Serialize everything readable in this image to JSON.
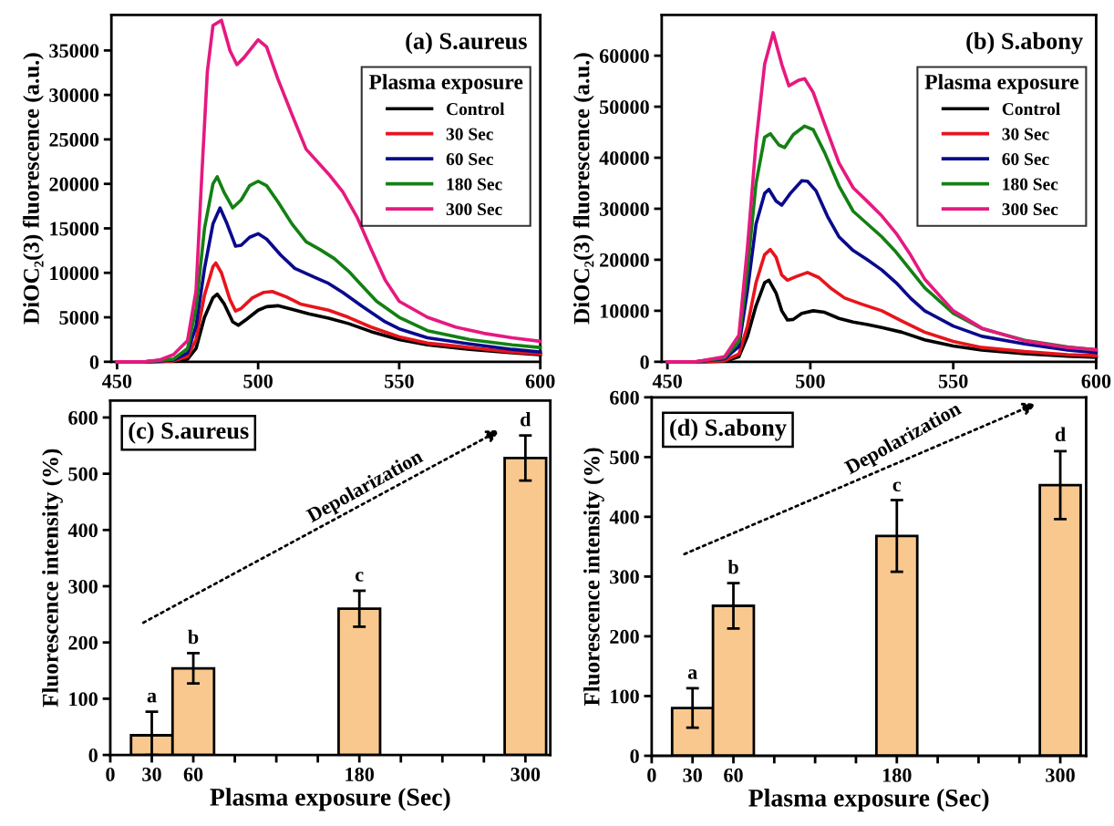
{
  "chart_data": [
    {
      "type": "line",
      "title": "(a) S.aureus",
      "ylabel": "DiOC₂(3) fluorescence (a.u.)",
      "legend_title": "Plasma exposure",
      "legend": "top right",
      "xlim": [
        448,
        600
      ],
      "xticks": [
        450,
        500,
        550,
        600
      ],
      "ylim": [
        0,
        39000
      ],
      "yticks": [
        0,
        5000,
        10000,
        15000,
        20000,
        25000,
        30000,
        35000
      ],
      "series": [
        {
          "name": "Control",
          "color": "#000000",
          "x": [
            450,
            460,
            470,
            475,
            478,
            481,
            484,
            485.5,
            488,
            491,
            493,
            496,
            500,
            503,
            507,
            512,
            518,
            525,
            532,
            540,
            550,
            560,
            575,
            590,
            600
          ],
          "values": [
            0,
            0,
            100,
            300,
            1500,
            5000,
            7200,
            7600,
            6500,
            4500,
            4100,
            4800,
            5800,
            6200,
            6300,
            5900,
            5400,
            4900,
            4300,
            3400,
            2500,
            1900,
            1400,
            1000,
            800
          ]
        },
        {
          "name": "30 Sec",
          "color": "#e8141c",
          "x": [
            450,
            460,
            470,
            475,
            478,
            481,
            484,
            485,
            487,
            490,
            492,
            494,
            498,
            502,
            505,
            510,
            515,
            525,
            532,
            540,
            550,
            560,
            575,
            590,
            600
          ],
          "values": [
            0,
            0,
            100,
            600,
            2500,
            7500,
            10700,
            11100,
            10000,
            7000,
            5700,
            6000,
            7200,
            7800,
            7900,
            7300,
            6500,
            5800,
            5000,
            3900,
            2800,
            2100,
            1600,
            1100,
            900
          ]
        },
        {
          "name": "60 Sec",
          "color": "#0a0a8c",
          "x": [
            450,
            460,
            470,
            475,
            478,
            481,
            484,
            486.5,
            489,
            492,
            494,
            497,
            500,
            503,
            508,
            513,
            520,
            525,
            530,
            537,
            545,
            550,
            560,
            575,
            590,
            600
          ],
          "values": [
            0,
            0,
            200,
            1000,
            4000,
            10500,
            15500,
            17300,
            15500,
            13000,
            13100,
            14000,
            14400,
            13800,
            12000,
            10500,
            9500,
            8800,
            7800,
            6200,
            4500,
            3700,
            2700,
            2000,
            1400,
            1100
          ]
        },
        {
          "name": "180 Sec",
          "color": "#138013",
          "x": [
            450,
            460,
            470,
            475,
            478,
            481,
            484,
            485.5,
            488,
            491,
            494,
            497,
            500,
            503,
            507,
            512,
            517,
            522,
            527,
            532,
            537,
            542,
            550,
            560,
            575,
            590,
            600
          ],
          "values": [
            0,
            0,
            300,
            1500,
            6000,
            15000,
            20000,
            20800,
            19000,
            17300,
            18200,
            19800,
            20300,
            19800,
            18000,
            15500,
            13500,
            12600,
            11600,
            10200,
            8500,
            6800,
            5000,
            3500,
            2500,
            1900,
            1600
          ]
        },
        {
          "name": "300 Sec",
          "color": "#e6197f",
          "x": [
            450,
            460,
            465,
            470,
            475,
            478,
            480,
            482,
            484,
            487,
            490,
            492.5,
            495,
            500,
            503,
            507,
            512,
            517,
            525,
            530,
            535,
            540,
            545,
            550,
            560,
            570,
            580,
            590,
            600
          ],
          "values": [
            0,
            0,
            200,
            800,
            2400,
            8000,
            20700,
            32600,
            37800,
            38400,
            35000,
            33400,
            34200,
            36200,
            35400,
            31800,
            27800,
            23900,
            21100,
            19100,
            16300,
            12700,
            9200,
            6800,
            5000,
            3900,
            3200,
            2700,
            2300
          ]
        }
      ]
    },
    {
      "type": "line",
      "title": "(b) S.abony",
      "ylabel": "DiOC₂(3) fluorescence (a.u.)",
      "legend_title": "Plasma exposure",
      "legend": "top right",
      "xlim": [
        448,
        600
      ],
      "xticks": [
        450,
        500,
        550,
        600
      ],
      "ylim": [
        0,
        68000
      ],
      "yticks": [
        0,
        10000,
        20000,
        30000,
        40000,
        50000,
        60000
      ],
      "series": [
        {
          "name": "Control",
          "color": "#000000",
          "x": [
            450,
            460,
            470,
            475,
            478,
            481,
            484,
            485.5,
            488,
            490,
            492,
            494,
            497,
            501,
            505,
            510,
            515,
            520,
            525,
            532,
            540,
            550,
            560,
            575,
            590,
            600
          ],
          "values": [
            0,
            0,
            100,
            1000,
            5000,
            11000,
            15500,
            16000,
            13500,
            10000,
            8200,
            8300,
            9500,
            10000,
            9700,
            8500,
            7800,
            7300,
            6700,
            5800,
            4300,
            3100,
            2300,
            1600,
            1100,
            900
          ]
        },
        {
          "name": "30 Sec",
          "color": "#e8141c",
          "x": [
            450,
            460,
            470,
            475,
            478,
            481,
            484,
            486,
            488,
            490,
            492,
            495,
            499,
            503,
            507,
            512,
            518,
            525,
            532,
            540,
            550,
            560,
            575,
            590,
            600
          ],
          "values": [
            0,
            0,
            200,
            1500,
            7000,
            15500,
            21000,
            22000,
            20500,
            17000,
            16000,
            16700,
            17500,
            16500,
            14500,
            12500,
            11300,
            10000,
            8000,
            5800,
            4000,
            2800,
            2000,
            1400,
            1200
          ]
        },
        {
          "name": "60 Sec",
          "color": "#0a0a8c",
          "x": [
            450,
            460,
            470,
            475,
            478,
            481,
            484,
            485.5,
            488,
            490,
            493,
            497,
            499,
            502,
            506,
            510,
            515,
            520,
            525,
            530,
            535,
            540,
            550,
            560,
            575,
            590,
            600
          ],
          "values": [
            0,
            0,
            600,
            3000,
            14000,
            27000,
            33000,
            33800,
            31500,
            30700,
            33000,
            35500,
            35400,
            33500,
            28500,
            24500,
            21800,
            20000,
            18000,
            15500,
            12500,
            10000,
            7000,
            5000,
            3500,
            2300,
            1800
          ]
        },
        {
          "name": "180 Sec",
          "color": "#138013",
          "x": [
            450,
            460,
            470,
            475,
            478,
            481,
            484,
            486,
            489,
            491,
            494,
            498,
            501,
            505,
            510,
            515,
            520,
            525,
            530,
            535,
            540,
            550,
            560,
            575,
            590,
            600
          ],
          "values": [
            0,
            0,
            800,
            4000,
            18000,
            35000,
            44000,
            44700,
            42500,
            42000,
            44500,
            46200,
            45500,
            41000,
            34500,
            29500,
            27000,
            24500,
            21500,
            18000,
            14500,
            9500,
            6500,
            4200,
            2900,
            2300
          ]
        },
        {
          "name": "300 Sec",
          "color": "#e6197f",
          "x": [
            450,
            460,
            470,
            475,
            478,
            481,
            484,
            487,
            490,
            492.5,
            496,
            498,
            501,
            505,
            510,
            515,
            520,
            525,
            530,
            535,
            540,
            550,
            560,
            575,
            590,
            600
          ],
          "values": [
            0,
            0,
            1000,
            5200,
            22400,
            43000,
            58300,
            64500,
            58300,
            54100,
            55200,
            55500,
            52800,
            46600,
            39000,
            34100,
            31400,
            28600,
            25200,
            21000,
            16200,
            10000,
            6600,
            4100,
            2800,
            2400
          ]
        }
      ]
    },
    {
      "type": "bar",
      "title": "(c) S.aureus",
      "xlabel": "Plasma exposure (Sec)",
      "ylabel": "Fluorescence intensity (%)",
      "x": [
        30,
        60,
        180,
        300
      ],
      "values": [
        35,
        154,
        260,
        528
      ],
      "errors": [
        [
          0,
          77
        ],
        27,
        32,
        40
      ],
      "color": "#f9c88f",
      "xlim": [
        0,
        318
      ],
      "xticks": [
        0,
        30,
        60,
        {
          "value": 90,
          "label": null
        },
        {
          "value": 120,
          "label": null
        },
        {
          "value": 150,
          "label": null
        },
        180,
        {
          "value": 210,
          "label": null
        },
        {
          "value": 240,
          "label": null
        },
        {
          "value": 270,
          "label": null
        },
        300
      ],
      "ylim": [
        0,
        630
      ],
      "yticks": [
        0,
        100,
        200,
        300,
        400,
        500,
        600
      ],
      "annotations": [
        {
          "text": "a",
          "x": 30,
          "y": 77
        },
        {
          "text": "b",
          "x": 60,
          "y": 181
        },
        {
          "text": "c",
          "x": 180,
          "y": 292
        },
        {
          "text": "d",
          "x": 300,
          "y": 568
        },
        "Depolarization"
      ]
    },
    {
      "type": "bar",
      "title": "(d) S.abony",
      "xlabel": "Plasma exposure (Sec)",
      "ylabel": "Fluorescence intensity (%)",
      "x": [
        30,
        60,
        180,
        300
      ],
      "values": [
        80,
        251,
        368,
        453
      ],
      "errors": [
        33,
        38,
        60,
        57
      ],
      "color": "#f9c88f",
      "xlim": [
        0,
        319
      ],
      "xticks": [
        0,
        30,
        60,
        {
          "value": 90,
          "label": null
        },
        {
          "value": 120,
          "label": null
        },
        {
          "value": 150,
          "label": null
        },
        180,
        {
          "value": 210,
          "label": null
        },
        {
          "value": 240,
          "label": null
        },
        {
          "value": 270,
          "label": null
        },
        300
      ],
      "ylim": [
        0,
        600
      ],
      "yticks": [
        0,
        100,
        200,
        300,
        400,
        500,
        600
      ],
      "annotations": [
        {
          "text": "a",
          "x": 30,
          "y": 113
        },
        {
          "text": "b",
          "x": 60,
          "y": 289
        },
        {
          "text": "c",
          "x": 180,
          "y": 427
        },
        {
          "text": "d",
          "x": 300,
          "y": 511
        },
        "Depolarization"
      ]
    }
  ]
}
